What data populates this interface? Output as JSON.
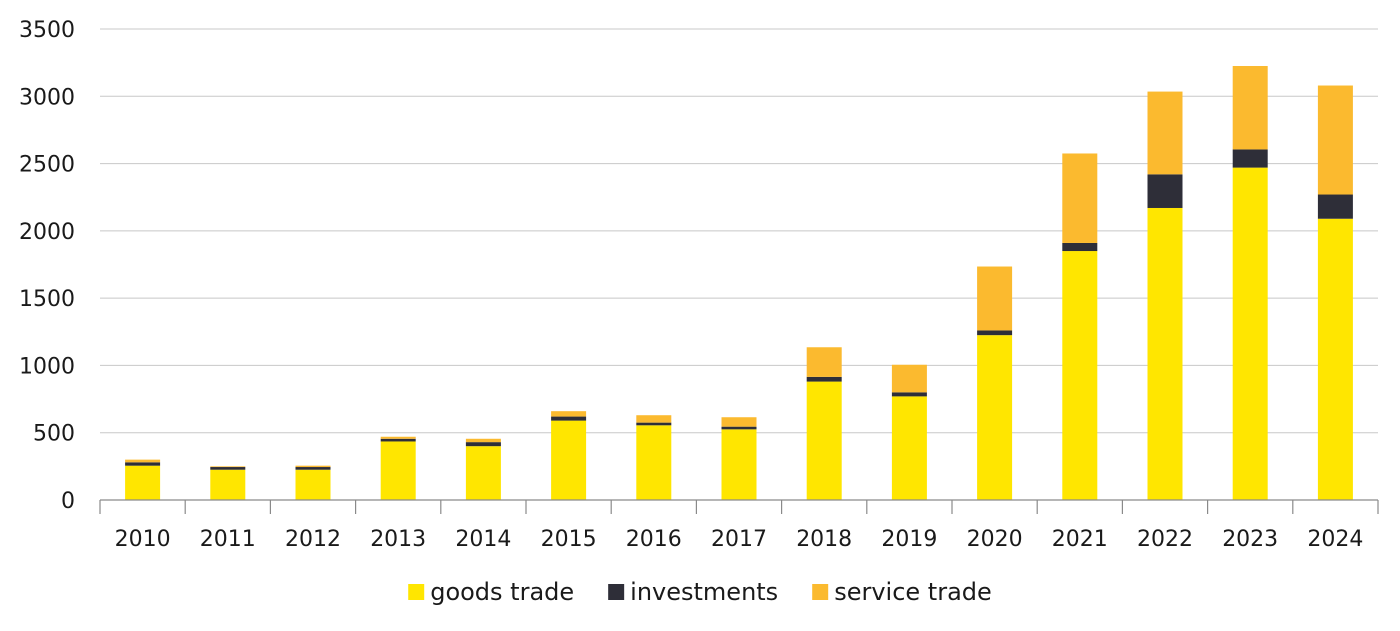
{
  "chart_data": {
    "type": "bar",
    "stacked": true,
    "title": "",
    "xlabel": "",
    "ylabel": "",
    "ylim": [
      0,
      3500
    ],
    "yticks": [
      0,
      500,
      1000,
      1500,
      2000,
      2500,
      3000,
      3500
    ],
    "grid": true,
    "legend_position": "bottom-center",
    "categories": [
      "2010",
      "2011",
      "2012",
      "2013",
      "2014",
      "2015",
      "2016",
      "2017",
      "2018",
      "2019",
      "2020",
      "2021",
      "2022",
      "2023",
      "2024"
    ],
    "series": [
      {
        "name": "goods trade",
        "color": "#FFE600",
        "values": [
          255,
          225,
          225,
          435,
          400,
          590,
          555,
          525,
          880,
          770,
          1225,
          1850,
          2170,
          2470,
          2090
        ]
      },
      {
        "name": "investments",
        "color": "#2E2E38",
        "values": [
          25,
          20,
          20,
          20,
          30,
          30,
          20,
          20,
          35,
          30,
          35,
          60,
          250,
          135,
          180
        ]
      },
      {
        "name": "service trade",
        "color": "#FBBA2F",
        "values": [
          20,
          5,
          10,
          15,
          25,
          40,
          55,
          70,
          220,
          205,
          475,
          665,
          615,
          620,
          810
        ]
      }
    ]
  }
}
